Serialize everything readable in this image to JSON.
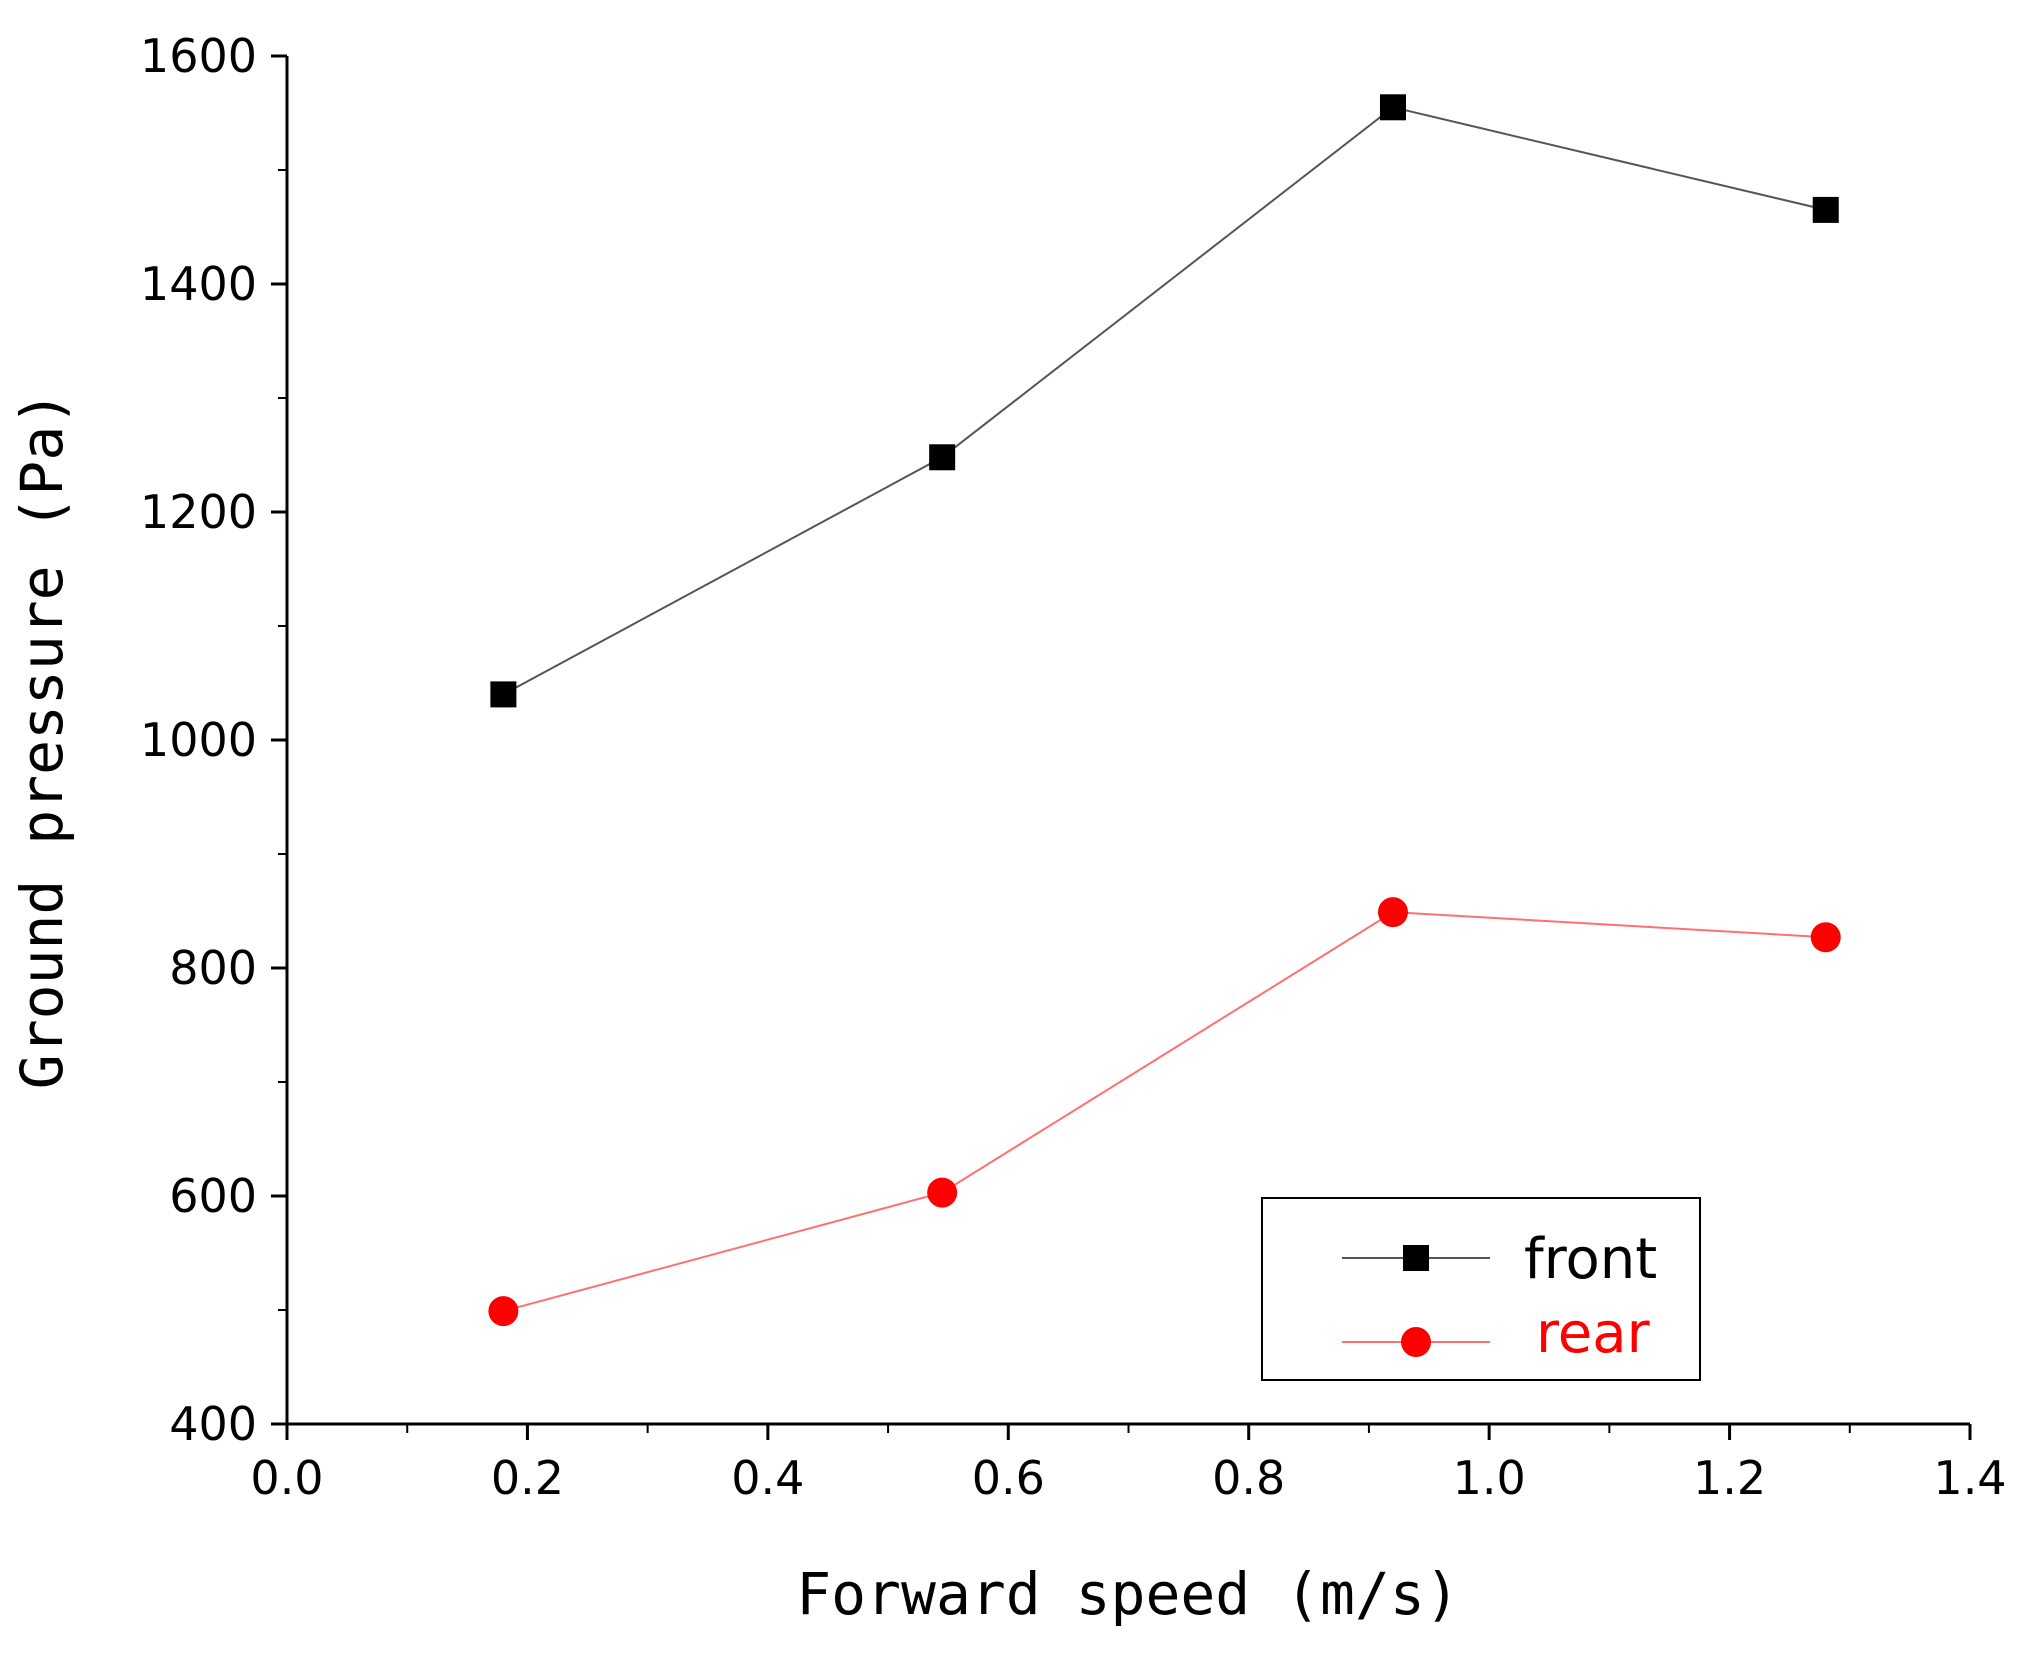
{
  "chart_data": {
    "type": "line",
    "title": "",
    "xlabel": "Forward speed (m/s)",
    "ylabel": "Ground pressure (Pa)",
    "xlim": [
      0.0,
      1.4
    ],
    "ylim": [
      400,
      1600
    ],
    "xticks": [
      "0.0",
      "0.2",
      "0.4",
      "0.6",
      "0.8",
      "1.0",
      "1.2",
      "1.4"
    ],
    "yticks": [
      "400",
      "600",
      "800",
      "1000",
      "1200",
      "1400",
      "1600"
    ],
    "grid": false,
    "legend_position": "bottom-right",
    "x": [
      0.18,
      0.545,
      0.92,
      1.28
    ],
    "series": [
      {
        "name": "front",
        "marker": "square",
        "color": "#000000",
        "line_color": "#555555",
        "values": [
          1040,
          1248,
          1555,
          1465
        ]
      },
      {
        "name": "rear",
        "marker": "circle",
        "color": "#ff0000",
        "line_color": "#ff7070",
        "values": [
          499,
          603,
          849,
          827
        ]
      }
    ]
  }
}
